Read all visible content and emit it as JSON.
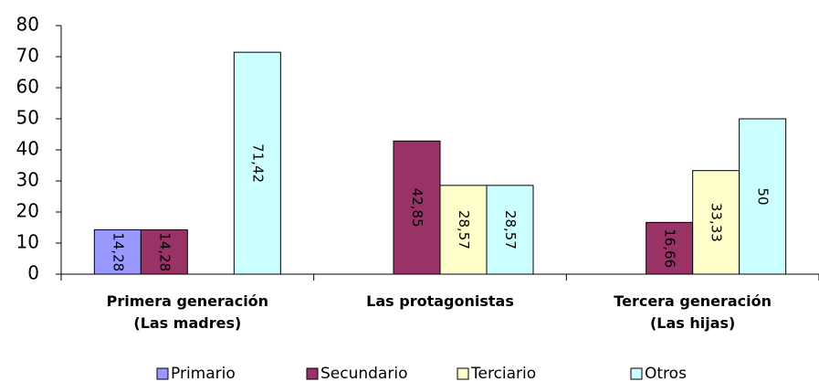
{
  "chart_data": {
    "type": "bar",
    "categories": [
      "Primera generación\n(Las madres)",
      "Las protagonistas",
      "Tercera generación\n(Las hijas)"
    ],
    "series": [
      {
        "name": "Primario",
        "color": "#9999ff",
        "values": [
          14.28,
          null,
          null
        ],
        "value_labels": [
          "14,28",
          null,
          null
        ]
      },
      {
        "name": "Secundario",
        "color": "#993366",
        "values": [
          14.28,
          42.85,
          16.66
        ],
        "value_labels": [
          "14,28",
          "42,85",
          "16,66"
        ]
      },
      {
        "name": "Terciario",
        "color": "#ffffcc",
        "values": [
          null,
          28.57,
          33.33
        ],
        "value_labels": [
          null,
          "28,57",
          "33,33"
        ]
      },
      {
        "name": "Otros",
        "color": "#ccffff",
        "values": [
          71.42,
          28.57,
          50
        ],
        "value_labels": [
          "71,42",
          "28,57",
          "50"
        ]
      }
    ],
    "ylim": [
      0,
      80
    ],
    "yticks": [
      0,
      10,
      20,
      30,
      40,
      50,
      60,
      70,
      80
    ],
    "grid": false,
    "legend": "bottom"
  }
}
